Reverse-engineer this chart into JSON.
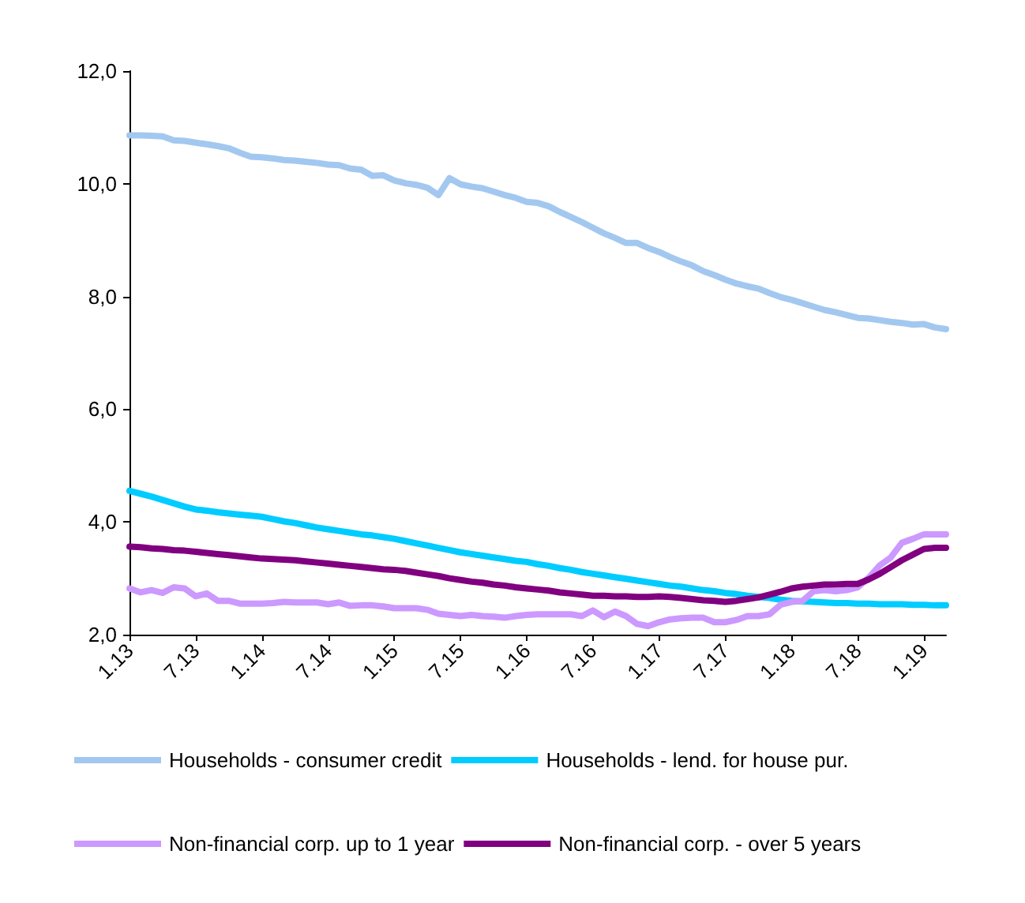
{
  "chart_data": {
    "type": "line",
    "categories": [
      "1.13",
      null,
      null,
      null,
      null,
      null,
      "7.13",
      null,
      null,
      null,
      null,
      null,
      "1.14",
      null,
      null,
      null,
      null,
      null,
      "7.14",
      null,
      null,
      null,
      null,
      null,
      "1.15",
      null,
      null,
      null,
      null,
      null,
      "7.15",
      null,
      null,
      null,
      null,
      null,
      "1.16",
      null,
      null,
      null,
      null,
      null,
      "7.16",
      null,
      null,
      null,
      null,
      null,
      "1.17",
      null,
      null,
      null,
      null,
      null,
      "7.17",
      null,
      null,
      null,
      null,
      null,
      "1.18",
      null,
      null,
      null,
      null,
      null,
      "7.18",
      null,
      null,
      null,
      null,
      null,
      "1.19",
      null,
      null
    ],
    "series": [
      {
        "name": "Households - consumer credit",
        "color": "#a3c8f0",
        "values": [
          10.86,
          10.86,
          10.85,
          10.84,
          10.77,
          10.76,
          10.73,
          10.7,
          10.67,
          10.63,
          10.55,
          10.48,
          10.47,
          10.45,
          10.42,
          10.41,
          10.39,
          10.37,
          10.34,
          10.33,
          10.27,
          10.25,
          10.14,
          10.15,
          10.06,
          10.01,
          9.98,
          9.93,
          9.8,
          10.1,
          9.99,
          9.95,
          9.92,
          9.86,
          9.8,
          9.75,
          9.68,
          9.66,
          9.6,
          9.5,
          9.41,
          9.32,
          9.22,
          9.12,
          9.04,
          8.95,
          8.95,
          8.86,
          8.79,
          8.7,
          8.62,
          8.55,
          8.45,
          8.38,
          8.3,
          8.23,
          8.18,
          8.14,
          8.06,
          7.99,
          7.94,
          7.88,
          7.82,
          7.76,
          7.72,
          7.67,
          7.62,
          7.61,
          7.58,
          7.55,
          7.53,
          7.5,
          7.51,
          7.45,
          7.42
        ]
      },
      {
        "name": "Households - lend. for house pur.",
        "color": "#00ccff",
        "values": [
          4.55,
          4.5,
          4.45,
          4.39,
          4.33,
          4.27,
          4.22,
          4.2,
          4.17,
          4.15,
          4.13,
          4.11,
          4.09,
          4.05,
          4.01,
          3.98,
          3.94,
          3.9,
          3.87,
          3.84,
          3.81,
          3.78,
          3.76,
          3.73,
          3.7,
          3.66,
          3.62,
          3.58,
          3.54,
          3.5,
          3.46,
          3.43,
          3.4,
          3.37,
          3.34,
          3.31,
          3.29,
          3.25,
          3.22,
          3.18,
          3.15,
          3.11,
          3.08,
          3.05,
          3.02,
          2.99,
          2.96,
          2.93,
          2.9,
          2.87,
          2.85,
          2.82,
          2.79,
          2.77,
          2.74,
          2.72,
          2.69,
          2.67,
          2.65,
          2.62,
          2.6,
          2.59,
          2.58,
          2.57,
          2.56,
          2.56,
          2.55,
          2.55,
          2.54,
          2.54,
          2.54,
          2.53,
          2.53,
          2.52,
          2.52
        ]
      },
      {
        "name": "Non-financial corp. up to 1 year",
        "color": "#cc99ff",
        "values": [
          2.82,
          2.75,
          2.79,
          2.74,
          2.84,
          2.82,
          2.68,
          2.73,
          2.6,
          2.6,
          2.55,
          2.55,
          2.55,
          2.56,
          2.58,
          2.57,
          2.57,
          2.57,
          2.54,
          2.57,
          2.51,
          2.52,
          2.52,
          2.5,
          2.47,
          2.47,
          2.47,
          2.44,
          2.37,
          2.35,
          2.33,
          2.35,
          2.33,
          2.32,
          2.3,
          2.33,
          2.35,
          2.36,
          2.36,
          2.36,
          2.36,
          2.33,
          2.43,
          2.31,
          2.41,
          2.33,
          2.19,
          2.15,
          2.22,
          2.27,
          2.29,
          2.3,
          2.3,
          2.22,
          2.22,
          2.26,
          2.33,
          2.33,
          2.36,
          2.53,
          2.58,
          2.6,
          2.77,
          2.79,
          2.77,
          2.79,
          2.84,
          3.01,
          3.23,
          3.37,
          3.63,
          3.7,
          3.78,
          3.78,
          3.78
        ]
      },
      {
        "name": "Non-financial corp. - over 5 years",
        "color": "#800080",
        "values": [
          3.56,
          3.55,
          3.53,
          3.52,
          3.5,
          3.49,
          3.47,
          3.45,
          3.43,
          3.41,
          3.39,
          3.37,
          3.35,
          3.34,
          3.33,
          3.32,
          3.3,
          3.28,
          3.26,
          3.24,
          3.22,
          3.2,
          3.18,
          3.16,
          3.15,
          3.13,
          3.1,
          3.07,
          3.04,
          3.0,
          2.97,
          2.94,
          2.92,
          2.89,
          2.87,
          2.84,
          2.82,
          2.8,
          2.78,
          2.75,
          2.73,
          2.71,
          2.69,
          2.69,
          2.68,
          2.68,
          2.67,
          2.67,
          2.68,
          2.67,
          2.65,
          2.63,
          2.61,
          2.6,
          2.58,
          2.6,
          2.63,
          2.66,
          2.71,
          2.76,
          2.82,
          2.85,
          2.87,
          2.89,
          2.89,
          2.9,
          2.9,
          2.98,
          3.08,
          3.2,
          3.32,
          3.42,
          3.52,
          3.54,
          3.54
        ]
      }
    ],
    "ylim": [
      2,
      12
    ],
    "yticks": [
      {
        "value": 2,
        "label": "2,0"
      },
      {
        "value": 4,
        "label": "4,0"
      },
      {
        "value": 6,
        "label": "6,0"
      },
      {
        "value": 8,
        "label": "8,0"
      },
      {
        "value": 10,
        "label": "10,0"
      },
      {
        "value": 12,
        "label": "12,0"
      }
    ],
    "grid": false,
    "legend": "bottom",
    "marker": "none",
    "line_style": "solid"
  }
}
